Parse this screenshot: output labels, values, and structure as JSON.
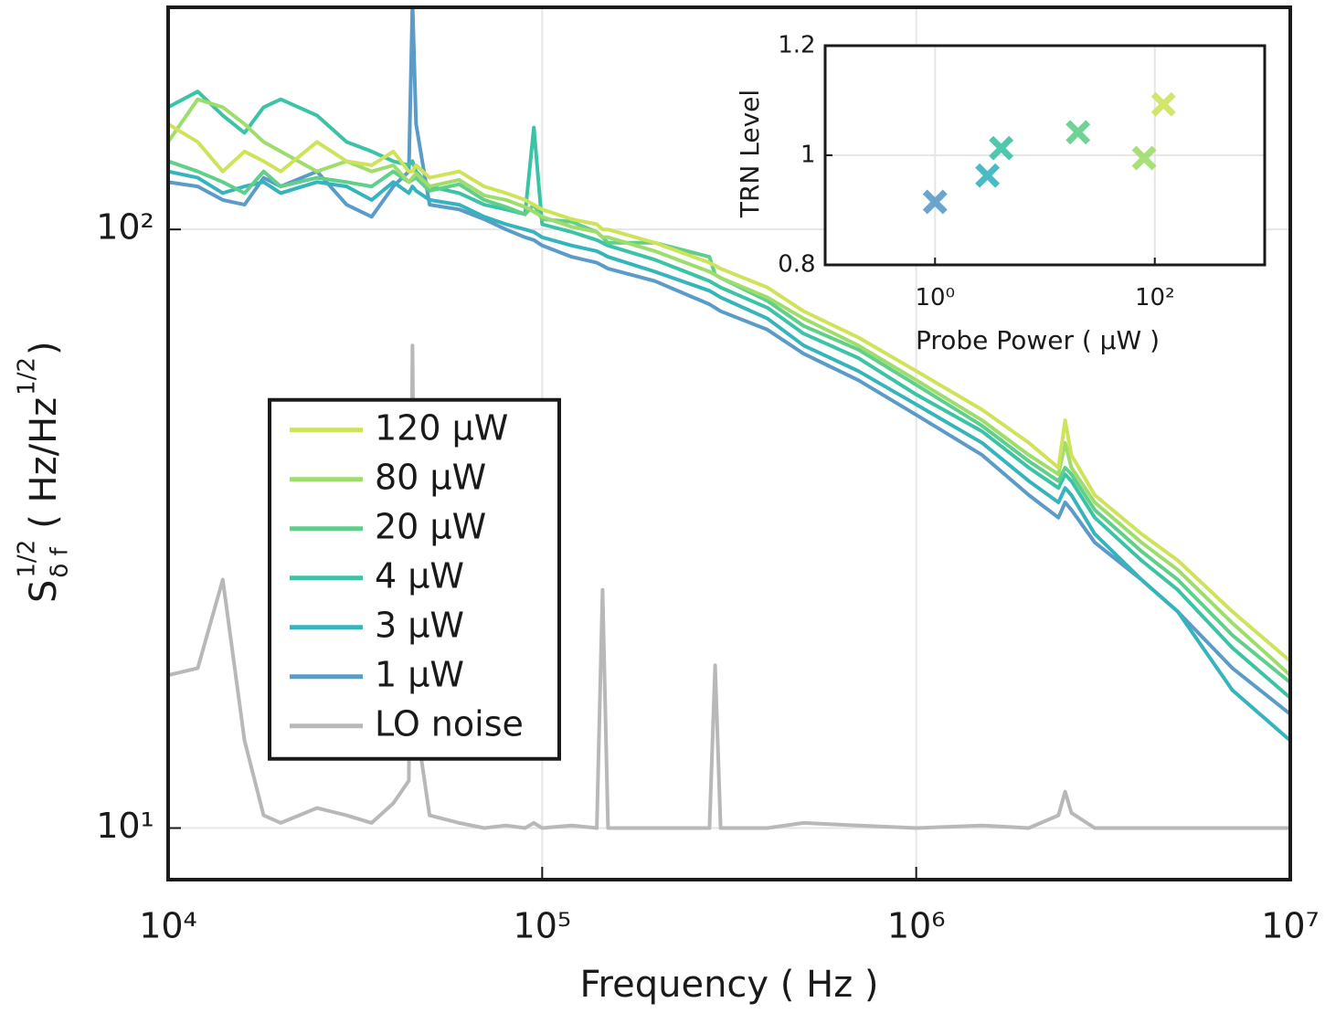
{
  "chart_data": [
    {
      "type": "line",
      "xlabel": "Frequency ( Hz )",
      "ylabel_parts": [
        "S",
        "1/2",
        "δ f",
        "( Hz/Hz",
        "1/2",
        " )"
      ],
      "xscale": "log",
      "yscale": "log",
      "grid": true,
      "legend_loc": "center left",
      "xlim": [
        10000,
        10000000
      ],
      "ylim": [
        8.2,
        235
      ],
      "xticks": [
        {
          "value": 10000,
          "label": "10⁴"
        },
        {
          "value": 100000,
          "label": "10⁵"
        },
        {
          "value": 1000000,
          "label": "10⁶"
        },
        {
          "value": 10000000,
          "label": "10⁷"
        }
      ],
      "yticks": [
        {
          "value": 10,
          "label": "10¹"
        },
        {
          "value": 100,
          "label": "10²"
        }
      ],
      "x": [
        10000,
        12000,
        14000,
        16000,
        18000,
        20000,
        25000,
        30000,
        35000,
        40000,
        44000,
        45000,
        46000,
        50000,
        60000,
        70000,
        80000,
        90000,
        95000,
        100000,
        120000,
        140000,
        145000,
        150000,
        200000,
        280000,
        290000,
        300000,
        400000,
        500000,
        700000,
        1000000,
        1500000,
        2000000,
        2400000,
        2500000,
        2600000,
        3000000,
        4000000,
        5000000,
        7000000,
        10000000
      ],
      "series": [
        {
          "name": "LO noise",
          "color": "#b8b8b8",
          "values": [
            18,
            18.5,
            26,
            14,
            10.5,
            10.2,
            10.8,
            10.5,
            10.2,
            11,
            12,
            64,
            15,
            10.5,
            10.2,
            10,
            10.1,
            10,
            10.2,
            10,
            10.1,
            10,
            25,
            10,
            10,
            10,
            18.7,
            10,
            10,
            10.2,
            10.1,
            10,
            10.1,
            10,
            10.5,
            11.5,
            10.6,
            10,
            10,
            10,
            10,
            10
          ]
        },
        {
          "name": "1 µW",
          "color": "#5b9bc8",
          "values": [
            120,
            118,
            112,
            110,
            122,
            118,
            125,
            110,
            105,
            118,
            125,
            240,
            150,
            110,
            108,
            104,
            100,
            97,
            96,
            94,
            90,
            88,
            87,
            86,
            82,
            75,
            74,
            73,
            68,
            62,
            56,
            49,
            42,
            36,
            33,
            35,
            34,
            30,
            26,
            23,
            18.5,
            15.5
          ]
        },
        {
          "name": "3 µW",
          "color": "#35b4be",
          "values": [
            125,
            122,
            115,
            118,
            120,
            115,
            120,
            118,
            112,
            120,
            115,
            118,
            116,
            112,
            110,
            105,
            102,
            100,
            99,
            97,
            94,
            92,
            91,
            90,
            85,
            79,
            78,
            77,
            71,
            64,
            58,
            51,
            44,
            38,
            35,
            37,
            36,
            31,
            26,
            23,
            17,
            14
          ]
        },
        {
          "name": "4 µW",
          "color": "#3cc3a6",
          "values": [
            160,
            170,
            155,
            145,
            160,
            165,
            155,
            140,
            135,
            130,
            128,
            130,
            125,
            118,
            115,
            110,
            108,
            106,
            148,
            102,
            99,
            96,
            95,
            94,
            89,
            82,
            81,
            80,
            74,
            67,
            61,
            53,
            46,
            40,
            37,
            39,
            38,
            33,
            28,
            25,
            20,
            16.5
          ]
        },
        {
          "name": "20 µW",
          "color": "#5fcf8a",
          "values": [
            130,
            125,
            120,
            115,
            125,
            118,
            122,
            120,
            118,
            125,
            120,
            121,
            122,
            116,
            119,
            112,
            109,
            106,
            110,
            104,
            103,
            99,
            97,
            95,
            95,
            90,
            84,
            83,
            76,
            69,
            63,
            55,
            47,
            41,
            38,
            40,
            39,
            34,
            29,
            26,
            21,
            17.5
          ]
        },
        {
          "name": "80 µW",
          "color": "#9edd6b",
          "values": [
            140,
            165,
            160,
            150,
            140,
            135,
            125,
            130,
            125,
            128,
            120,
            122,
            124,
            118,
            121,
            114,
            112,
            109,
            107,
            105,
            101,
            99,
            97,
            97,
            92,
            85,
            84,
            83,
            77,
            71,
            64,
            56,
            48,
            42,
            39,
            44,
            40,
            35,
            30,
            27,
            22,
            18
          ]
        },
        {
          "name": "120 µW",
          "color": "#cfe35a",
          "values": [
            150,
            140,
            125,
            135,
            130,
            125,
            140,
            130,
            128,
            135,
            125,
            125,
            128,
            122,
            125,
            118,
            115,
            112,
            110,
            108,
            104,
            102,
            100,
            100,
            95,
            88,
            87,
            86,
            80,
            73,
            66,
            58,
            50,
            44,
            40,
            48,
            42,
            36,
            31,
            28,
            23,
            19
          ]
        }
      ]
    },
    {
      "type": "scatter",
      "xlabel": "Probe Power ( µW )",
      "ylabel": "TRN Level",
      "xscale": "log",
      "grid": true,
      "xlim": [
        0.1,
        1000
      ],
      "ylim": [
        0.8,
        1.2
      ],
      "xticks": [
        {
          "value": 1,
          "label": "10⁰"
        },
        {
          "value": 100,
          "label": "10²"
        }
      ],
      "yticks": [
        0.8,
        1,
        1.2
      ],
      "x": [
        1,
        3,
        4,
        20,
        80,
        120
      ],
      "y": [
        0.915,
        0.963,
        1.013,
        1.042,
        0.995,
        1.093
      ],
      "colors": [
        "#5b9bc8",
        "#35b4be",
        "#3cc3a6",
        "#5fcf8a",
        "#9edd6b",
        "#cfe35a"
      ]
    }
  ]
}
